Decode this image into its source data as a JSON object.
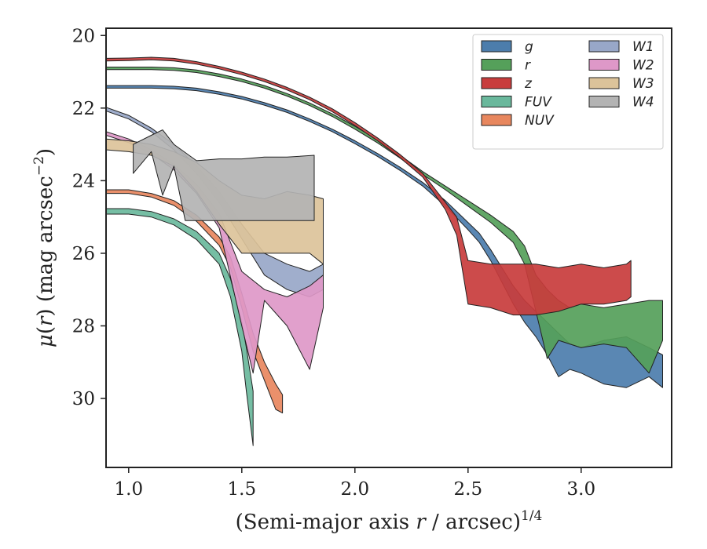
{
  "chart_data": {
    "type": "area",
    "xlabel": "(Semi-major axis r / arcsec)^1/4",
    "ylabel": "μ(r) (mag arcsec^−2)",
    "xlim": [
      0.9,
      3.4
    ],
    "ylim": [
      31.9,
      19.8
    ],
    "y_inverted": true,
    "xticks": [
      "1.0",
      "1.5",
      "2.0",
      "2.5",
      "3.0"
    ],
    "yticks": [
      "20",
      "22",
      "24",
      "26",
      "28",
      "30"
    ],
    "legend_placement": "top-right",
    "grid": false,
    "series": [
      {
        "name": "g",
        "color": "#4c7dac",
        "upper": [
          [
            0.9,
            21.38
          ],
          [
            1.0,
            21.38
          ],
          [
            1.1,
            21.38
          ],
          [
            1.2,
            21.4
          ],
          [
            1.3,
            21.45
          ],
          [
            1.4,
            21.55
          ],
          [
            1.5,
            21.68
          ],
          [
            1.6,
            21.85
          ],
          [
            1.7,
            22.05
          ],
          [
            1.8,
            22.3
          ],
          [
            1.9,
            22.58
          ],
          [
            2.0,
            22.9
          ],
          [
            2.1,
            23.25
          ],
          [
            2.2,
            23.63
          ],
          [
            2.3,
            24.05
          ],
          [
            2.4,
            24.55
          ],
          [
            2.5,
            25.15
          ],
          [
            2.55,
            25.45
          ],
          [
            2.6,
            25.9
          ],
          [
            2.65,
            26.4
          ],
          [
            2.7,
            26.9
          ],
          [
            2.75,
            27.3
          ],
          [
            2.8,
            27.6
          ],
          [
            2.85,
            27.9
          ],
          [
            2.9,
            28.2
          ],
          [
            2.95,
            28.5
          ],
          [
            3.0,
            28.6
          ],
          [
            3.1,
            28.4
          ],
          [
            3.2,
            28.3
          ],
          [
            3.3,
            28.6
          ],
          [
            3.36,
            28.8
          ]
        ],
        "lower": [
          [
            0.9,
            21.45
          ],
          [
            1.0,
            21.45
          ],
          [
            1.1,
            21.45
          ],
          [
            1.2,
            21.47
          ],
          [
            1.3,
            21.52
          ],
          [
            1.4,
            21.62
          ],
          [
            1.5,
            21.75
          ],
          [
            1.6,
            21.92
          ],
          [
            1.7,
            22.12
          ],
          [
            1.8,
            22.37
          ],
          [
            1.9,
            22.65
          ],
          [
            2.0,
            22.98
          ],
          [
            2.1,
            23.33
          ],
          [
            2.2,
            23.72
          ],
          [
            2.3,
            24.15
          ],
          [
            2.4,
            24.7
          ],
          [
            2.5,
            25.35
          ],
          [
            2.55,
            25.7
          ],
          [
            2.6,
            26.2
          ],
          [
            2.65,
            26.8
          ],
          [
            2.7,
            27.4
          ],
          [
            2.75,
            27.9
          ],
          [
            2.8,
            28.3
          ],
          [
            2.85,
            28.8
          ],
          [
            2.9,
            29.4
          ],
          [
            2.95,
            29.2
          ],
          [
            3.0,
            29.3
          ],
          [
            3.1,
            29.6
          ],
          [
            3.2,
            29.7
          ],
          [
            3.3,
            29.4
          ],
          [
            3.36,
            29.7
          ]
        ]
      },
      {
        "name": "r",
        "color": "#55a05a",
        "upper": [
          [
            0.9,
            20.87
          ],
          [
            1.0,
            20.87
          ],
          [
            1.1,
            20.87
          ],
          [
            1.2,
            20.89
          ],
          [
            1.3,
            20.95
          ],
          [
            1.4,
            21.06
          ],
          [
            1.5,
            21.2
          ],
          [
            1.6,
            21.38
          ],
          [
            1.7,
            21.6
          ],
          [
            1.8,
            21.86
          ],
          [
            1.9,
            22.16
          ],
          [
            2.0,
            22.5
          ],
          [
            2.1,
            22.88
          ],
          [
            2.2,
            23.3
          ],
          [
            2.3,
            23.75
          ],
          [
            2.4,
            24.15
          ],
          [
            2.5,
            24.55
          ],
          [
            2.6,
            24.95
          ],
          [
            2.7,
            25.4
          ],
          [
            2.75,
            25.8
          ],
          [
            2.8,
            26.6
          ],
          [
            2.85,
            27.0
          ],
          [
            2.9,
            27.3
          ],
          [
            2.95,
            27.5
          ],
          [
            3.0,
            27.4
          ],
          [
            3.1,
            27.5
          ],
          [
            3.2,
            27.4
          ],
          [
            3.3,
            27.3
          ],
          [
            3.36,
            27.3
          ]
        ],
        "lower": [
          [
            0.9,
            20.94
          ],
          [
            1.0,
            20.94
          ],
          [
            1.1,
            20.94
          ],
          [
            1.2,
            20.96
          ],
          [
            1.3,
            21.02
          ],
          [
            1.4,
            21.13
          ],
          [
            1.5,
            21.27
          ],
          [
            1.6,
            21.45
          ],
          [
            1.7,
            21.67
          ],
          [
            1.8,
            21.93
          ],
          [
            1.9,
            22.23
          ],
          [
            2.0,
            22.58
          ],
          [
            2.1,
            22.96
          ],
          [
            2.2,
            23.38
          ],
          [
            2.3,
            23.83
          ],
          [
            2.4,
            24.25
          ],
          [
            2.5,
            24.7
          ],
          [
            2.6,
            25.15
          ],
          [
            2.7,
            25.7
          ],
          [
            2.75,
            26.3
          ],
          [
            2.8,
            27.6
          ],
          [
            2.85,
            28.9
          ],
          [
            2.9,
            28.4
          ],
          [
            2.95,
            28.5
          ],
          [
            3.0,
            28.6
          ],
          [
            3.1,
            28.5
          ],
          [
            3.2,
            28.6
          ],
          [
            3.3,
            29.3
          ],
          [
            3.36,
            28.4
          ]
        ]
      },
      {
        "name": "z",
        "color": "#c83c3c",
        "upper": [
          [
            0.9,
            20.63
          ],
          [
            1.0,
            20.62
          ],
          [
            1.1,
            20.6
          ],
          [
            1.2,
            20.63
          ],
          [
            1.3,
            20.72
          ],
          [
            1.4,
            20.85
          ],
          [
            1.5,
            21.01
          ],
          [
            1.6,
            21.2
          ],
          [
            1.7,
            21.43
          ],
          [
            1.8,
            21.7
          ],
          [
            1.9,
            22.02
          ],
          [
            2.0,
            22.4
          ],
          [
            2.1,
            22.82
          ],
          [
            2.2,
            23.28
          ],
          [
            2.3,
            23.8
          ],
          [
            2.35,
            24.2
          ],
          [
            2.4,
            24.6
          ],
          [
            2.45,
            25.0
          ],
          [
            2.5,
            26.2
          ],
          [
            2.6,
            26.3
          ],
          [
            2.7,
            26.3
          ],
          [
            2.8,
            26.3
          ],
          [
            2.9,
            26.4
          ],
          [
            3.0,
            26.3
          ],
          [
            3.1,
            26.4
          ],
          [
            3.2,
            26.3
          ],
          [
            3.22,
            26.2
          ]
        ],
        "lower": [
          [
            0.9,
            20.7
          ],
          [
            1.0,
            20.69
          ],
          [
            1.1,
            20.67
          ],
          [
            1.2,
            20.7
          ],
          [
            1.3,
            20.79
          ],
          [
            1.4,
            20.92
          ],
          [
            1.5,
            21.08
          ],
          [
            1.6,
            21.27
          ],
          [
            1.7,
            21.5
          ],
          [
            1.8,
            21.77
          ],
          [
            1.9,
            22.1
          ],
          [
            2.0,
            22.48
          ],
          [
            2.1,
            22.9
          ],
          [
            2.2,
            23.37
          ],
          [
            2.3,
            23.9
          ],
          [
            2.35,
            24.35
          ],
          [
            2.4,
            24.8
          ],
          [
            2.45,
            25.5
          ],
          [
            2.5,
            27.4
          ],
          [
            2.6,
            27.5
          ],
          [
            2.7,
            27.7
          ],
          [
            2.8,
            27.7
          ],
          [
            2.9,
            27.6
          ],
          [
            3.0,
            27.4
          ],
          [
            3.1,
            27.4
          ],
          [
            3.2,
            27.3
          ],
          [
            3.22,
            27.2
          ]
        ]
      },
      {
        "name": "FUV",
        "color": "#6ab89c",
        "upper": [
          [
            0.9,
            24.77
          ],
          [
            1.0,
            24.77
          ],
          [
            1.1,
            24.85
          ],
          [
            1.2,
            25.05
          ],
          [
            1.3,
            25.4
          ],
          [
            1.4,
            26.0
          ],
          [
            1.45,
            26.7
          ],
          [
            1.5,
            27.9
          ],
          [
            1.52,
            28.6
          ],
          [
            1.55,
            29.8
          ]
        ],
        "lower": [
          [
            0.9,
            24.92
          ],
          [
            1.0,
            24.92
          ],
          [
            1.1,
            25.0
          ],
          [
            1.2,
            25.22
          ],
          [
            1.3,
            25.62
          ],
          [
            1.4,
            26.3
          ],
          [
            1.45,
            27.2
          ],
          [
            1.5,
            28.7
          ],
          [
            1.52,
            29.8
          ],
          [
            1.55,
            31.3
          ]
        ]
      },
      {
        "name": "NUV",
        "color": "#e8875e",
        "upper": [
          [
            0.9,
            24.25
          ],
          [
            1.0,
            24.25
          ],
          [
            1.1,
            24.35
          ],
          [
            1.2,
            24.55
          ],
          [
            1.3,
            24.95
          ],
          [
            1.4,
            25.55
          ],
          [
            1.45,
            26.1
          ],
          [
            1.5,
            27.1
          ],
          [
            1.55,
            28.2
          ],
          [
            1.6,
            29.0
          ],
          [
            1.65,
            29.6
          ],
          [
            1.68,
            29.9
          ]
        ],
        "lower": [
          [
            0.9,
            24.35
          ],
          [
            1.0,
            24.35
          ],
          [
            1.1,
            24.45
          ],
          [
            1.2,
            24.68
          ],
          [
            1.3,
            25.12
          ],
          [
            1.4,
            25.78
          ],
          [
            1.45,
            26.4
          ],
          [
            1.5,
            27.5
          ],
          [
            1.55,
            28.7
          ],
          [
            1.6,
            29.5
          ],
          [
            1.65,
            30.3
          ],
          [
            1.68,
            30.4
          ]
        ]
      },
      {
        "name": "W1",
        "color": "#98a7c8",
        "upper": [
          [
            0.9,
            21.98
          ],
          [
            1.0,
            22.2
          ],
          [
            1.1,
            22.55
          ],
          [
            1.2,
            23.0
          ],
          [
            1.3,
            23.6
          ],
          [
            1.4,
            24.3
          ],
          [
            1.5,
            25.2
          ],
          [
            1.6,
            26.0
          ],
          [
            1.7,
            26.3
          ],
          [
            1.8,
            26.5
          ],
          [
            1.86,
            26.3
          ]
        ],
        "lower": [
          [
            0.9,
            22.08
          ],
          [
            1.0,
            22.3
          ],
          [
            1.1,
            22.65
          ],
          [
            1.2,
            23.15
          ],
          [
            1.3,
            23.8
          ],
          [
            1.4,
            24.6
          ],
          [
            1.5,
            25.6
          ],
          [
            1.6,
            26.6
          ],
          [
            1.7,
            27.0
          ],
          [
            1.8,
            27.2
          ],
          [
            1.86,
            27.0
          ]
        ]
      },
      {
        "name": "W2",
        "color": "#de98c8",
        "upper": [
          [
            0.9,
            22.65
          ],
          [
            1.0,
            22.85
          ],
          [
            1.1,
            23.15
          ],
          [
            1.2,
            23.55
          ],
          [
            1.3,
            24.1
          ],
          [
            1.4,
            24.9
          ],
          [
            1.5,
            26.5
          ],
          [
            1.6,
            27.0
          ],
          [
            1.7,
            27.2
          ],
          [
            1.8,
            26.9
          ],
          [
            1.86,
            26.6
          ]
        ],
        "lower": [
          [
            0.9,
            22.75
          ],
          [
            1.0,
            22.95
          ],
          [
            1.1,
            23.25
          ],
          [
            1.2,
            23.7
          ],
          [
            1.3,
            24.35
          ],
          [
            1.4,
            25.3
          ],
          [
            1.5,
            28.0
          ],
          [
            1.55,
            29.3
          ],
          [
            1.6,
            27.3
          ],
          [
            1.7,
            28.0
          ],
          [
            1.8,
            29.2
          ],
          [
            1.86,
            27.5
          ]
        ]
      },
      {
        "name": "W3",
        "color": "#dcc39a",
        "upper": [
          [
            0.9,
            22.85
          ],
          [
            1.0,
            22.9
          ],
          [
            1.1,
            23.0
          ],
          [
            1.2,
            23.2
          ],
          [
            1.3,
            23.5
          ],
          [
            1.4,
            24.0
          ],
          [
            1.5,
            24.4
          ],
          [
            1.6,
            24.5
          ],
          [
            1.7,
            24.3
          ],
          [
            1.8,
            24.4
          ],
          [
            1.86,
            24.5
          ]
        ],
        "lower": [
          [
            0.9,
            23.15
          ],
          [
            1.0,
            23.2
          ],
          [
            1.1,
            23.3
          ],
          [
            1.2,
            23.6
          ],
          [
            1.3,
            24.3
          ],
          [
            1.4,
            25.2
          ],
          [
            1.5,
            26.0
          ],
          [
            1.6,
            26.0
          ],
          [
            1.7,
            26.0
          ],
          [
            1.8,
            26.0
          ],
          [
            1.86,
            26.3
          ]
        ]
      },
      {
        "name": "W4",
        "color": "#b3b3b3",
        "upper": [
          [
            1.02,
            23.0
          ],
          [
            1.1,
            22.75
          ],
          [
            1.15,
            22.6
          ],
          [
            1.2,
            23.0
          ],
          [
            1.3,
            23.45
          ],
          [
            1.4,
            23.4
          ],
          [
            1.5,
            23.4
          ],
          [
            1.6,
            23.35
          ],
          [
            1.7,
            23.35
          ],
          [
            1.82,
            23.3
          ]
        ],
        "lower": [
          [
            1.02,
            23.8
          ],
          [
            1.1,
            23.2
          ],
          [
            1.15,
            24.4
          ],
          [
            1.2,
            23.6
          ],
          [
            1.25,
            25.1
          ],
          [
            1.4,
            25.1
          ],
          [
            1.5,
            25.1
          ],
          [
            1.6,
            25.1
          ],
          [
            1.7,
            25.1
          ],
          [
            1.82,
            25.1
          ]
        ]
      }
    ]
  }
}
